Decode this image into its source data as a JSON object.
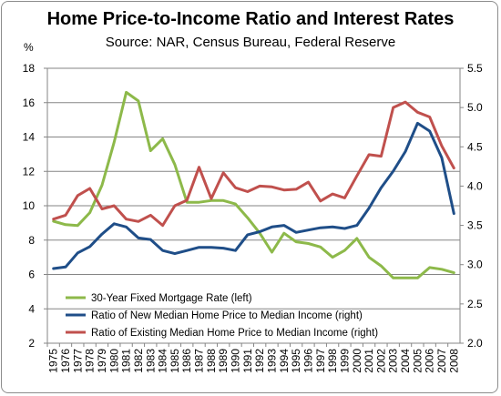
{
  "chart_data": {
    "type": "line",
    "title": "Home Price-to-Income Ratio and Interest Rates",
    "subtitle": "Source: NAR, Census Bureau, Federal Reserve",
    "ylabel_left": "%",
    "ylim_left": [
      2,
      18
    ],
    "yticks_left": [
      2,
      4,
      6,
      8,
      10,
      12,
      14,
      16,
      18
    ],
    "ylim_right": [
      2.0,
      5.5
    ],
    "yticks_right": [
      "2.0",
      "2.5",
      "3.0",
      "3.5",
      "4.0",
      "4.5",
      "5.0",
      "5.5"
    ],
    "categories": [
      "1975",
      "1976",
      "1977",
      "1978",
      "1979",
      "1980",
      "1981",
      "1982",
      "1983",
      "1984",
      "1985",
      "1986",
      "1987",
      "1988",
      "1989",
      "1990",
      "1991",
      "1992",
      "1993",
      "1994",
      "1995",
      "1996",
      "1997",
      "1998",
      "1999",
      "2000",
      "2001",
      "2002",
      "2003",
      "2004",
      "2005",
      "2006",
      "2007",
      "2008"
    ],
    "grid": true,
    "legend_position": "bottom-left",
    "series": [
      {
        "name": "30-Year Fixed Mortgage  Rate (left)",
        "axis": "left",
        "color": "#8db94a",
        "values": [
          9.1,
          8.9,
          8.85,
          9.6,
          11.2,
          13.7,
          16.6,
          16.1,
          13.2,
          13.9,
          12.4,
          10.2,
          10.2,
          10.3,
          10.3,
          10.1,
          9.3,
          8.4,
          7.3,
          8.4,
          7.9,
          7.8,
          7.6,
          7.0,
          7.4,
          8.1,
          7.0,
          6.5,
          5.8,
          5.8,
          5.8,
          6.4,
          6.3,
          6.1
        ]
      },
      {
        "name": "Ratio of New Median Home Price to Median Income (right)",
        "axis": "right",
        "color": "#1f4e88",
        "values": [
          2.95,
          2.97,
          3.15,
          3.23,
          3.39,
          3.52,
          3.48,
          3.34,
          3.32,
          3.18,
          3.14,
          3.18,
          3.22,
          3.22,
          3.21,
          3.18,
          3.38,
          3.42,
          3.48,
          3.5,
          3.41,
          3.44,
          3.47,
          3.48,
          3.46,
          3.5,
          3.72,
          3.98,
          4.19,
          4.44,
          4.8,
          4.7,
          4.36,
          3.65
        ]
      },
      {
        "name": "Ratio of Existing Median Home Price to Median Income (right)",
        "axis": "right",
        "color": "#c0504d",
        "values": [
          3.58,
          3.63,
          3.88,
          3.97,
          3.71,
          3.75,
          3.58,
          3.55,
          3.63,
          3.5,
          3.75,
          3.82,
          4.24,
          3.84,
          4.17,
          3.98,
          3.93,
          4.0,
          3.99,
          3.95,
          3.96,
          4.05,
          3.81,
          3.9,
          3.85,
          4.13,
          4.4,
          4.38,
          5.0,
          5.07,
          4.94,
          4.88,
          4.51,
          4.23
        ]
      }
    ]
  }
}
